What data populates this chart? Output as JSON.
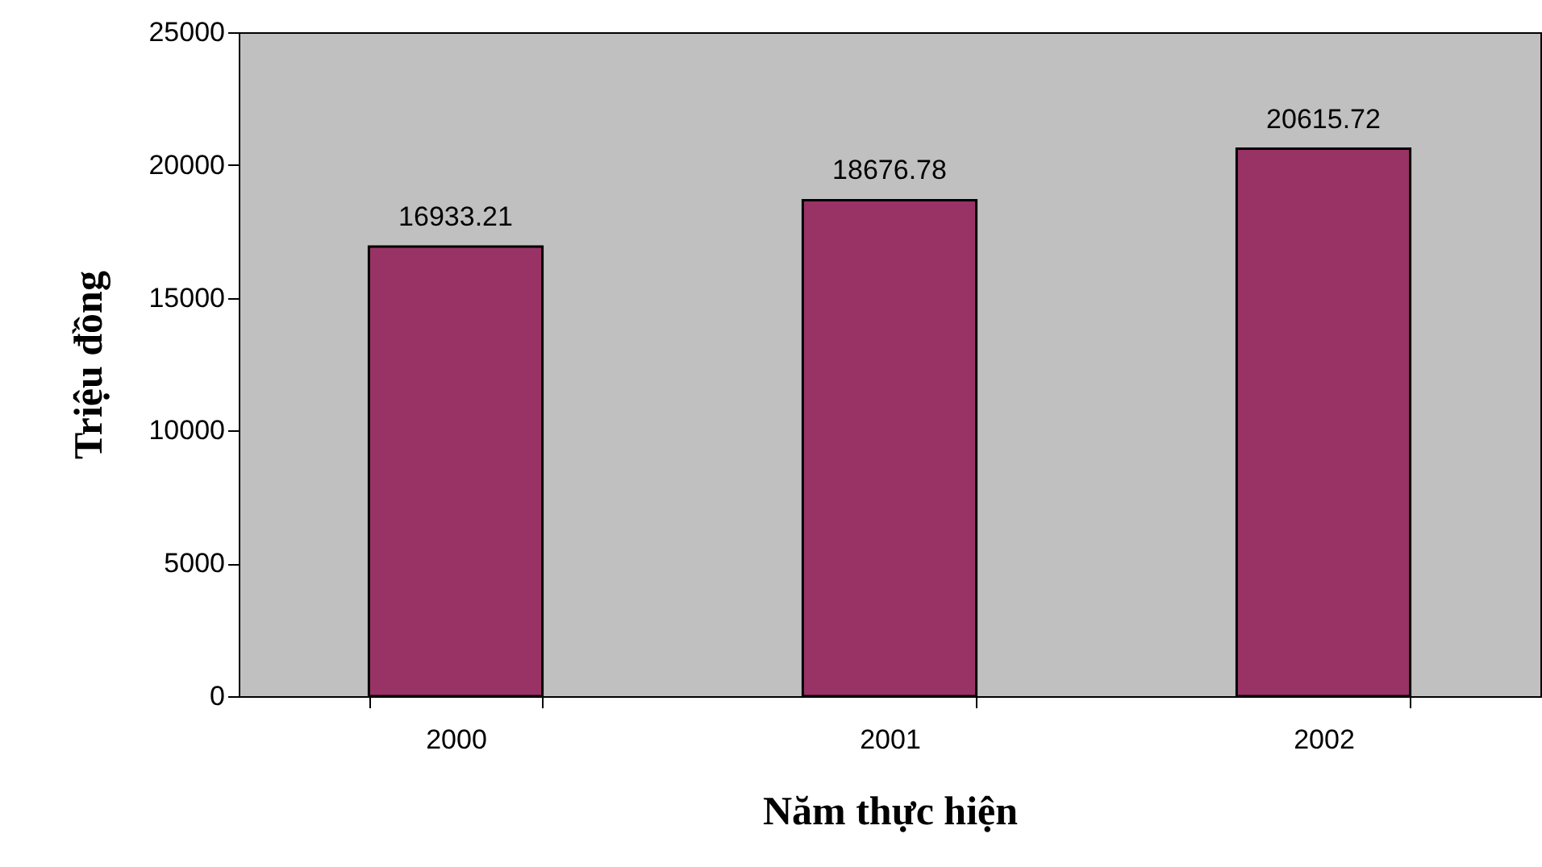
{
  "chart_data": {
    "type": "bar",
    "xlabel": "Năm thực hiện",
    "ylabel": "Triệu đồng",
    "categories": [
      "2000",
      "2001",
      "2002"
    ],
    "values": [
      16933.21,
      18676.78,
      20615.72
    ],
    "color": "#993366",
    "ylim": [
      0,
      25000
    ],
    "yticks": [
      0,
      5000,
      10000,
      15000,
      20000,
      25000
    ],
    "grid": false,
    "data_labels": true
  }
}
